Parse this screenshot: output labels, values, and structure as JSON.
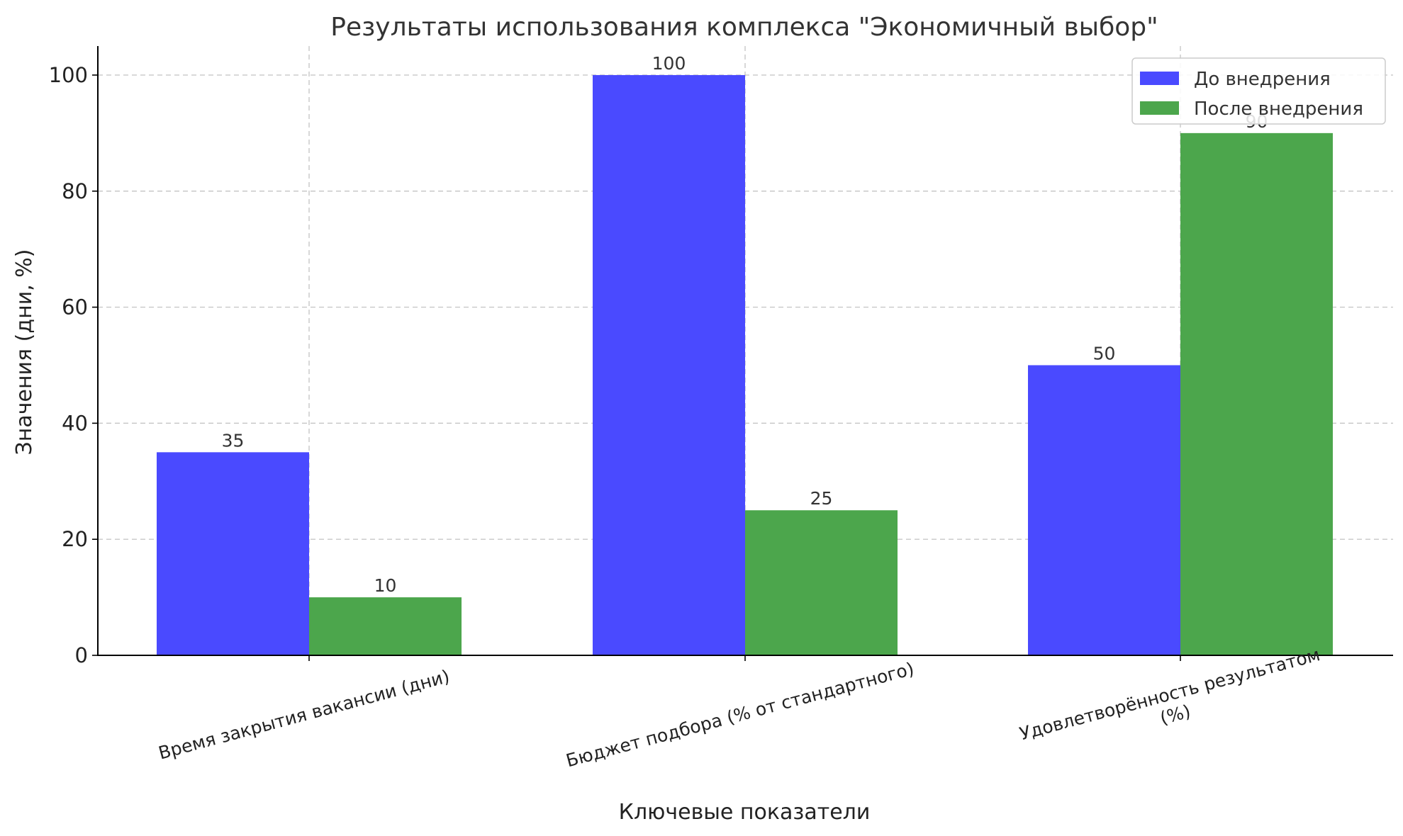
{
  "chart_data": {
    "type": "bar",
    "title": "Результаты использования комплекса \"Экономичный выбор\"",
    "xlabel": "Ключевые показатели",
    "ylabel": "Значения (дни, %)",
    "categories": [
      [
        "Время закрытия вакансии (дни)"
      ],
      [
        "Бюджет подбора (% от стандартного)"
      ],
      [
        "Удовлетворённость результатом",
        "(%)"
      ]
    ],
    "series": [
      {
        "name": "До внедрения",
        "color": "#4a4aff",
        "values": [
          35,
          100,
          50
        ]
      },
      {
        "name": "После внедрения",
        "color": "#4ca64c",
        "values": [
          10,
          25,
          90
        ]
      }
    ],
    "ylim": [
      0,
      105
    ],
    "yticks": [
      0,
      20,
      40,
      60,
      80,
      100
    ],
    "grid": true,
    "legend_position": "top-right",
    "data_labels": true
  }
}
